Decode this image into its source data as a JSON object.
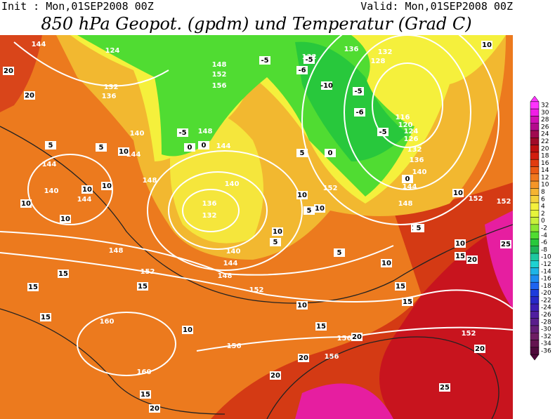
{
  "header": {
    "init": "Init : Mon,01SEP2008 00Z",
    "valid": "Valid: Mon,01SEP2008 00Z",
    "title": "850 hPa Geopot. (gpdm) und Temperatur (Grad C)"
  },
  "map": {
    "contour_labels": [
      144,
      124,
      132,
      136,
      148,
      152,
      156,
      140,
      144,
      148,
      148,
      144,
      140,
      136,
      132,
      140,
      144,
      148,
      152,
      152,
      148,
      160,
      160,
      156,
      156,
      156,
      152,
      144,
      148,
      140,
      136,
      132,
      126,
      124,
      120,
      116,
      128,
      132,
      136,
      132,
      152,
      152,
      152,
      140,
      144,
      144,
      -5,
      -6,
      -5,
      -10,
      -5,
      -6,
      -5,
      -5,
      0,
      0,
      5,
      0,
      5,
      10,
      10,
      10,
      5,
      5,
      10,
      10,
      10,
      15,
      20,
      25,
      15,
      15,
      10,
      15,
      10,
      10,
      20,
      20,
      5,
      10,
      10,
      10,
      10,
      10,
      15,
      15,
      15,
      15,
      15,
      20,
      20,
      20,
      20,
      25,
      20,
      5,
      5,
      10,
      0
    ]
  },
  "colorbar": {
    "ticks": [
      32,
      30,
      28,
      26,
      24,
      22,
      20,
      18,
      16,
      14,
      12,
      10,
      8,
      6,
      4,
      2,
      0,
      -2,
      -4,
      -6,
      -8,
      -10,
      -12,
      -14,
      -16,
      -18,
      -20,
      -22,
      -24,
      -26,
      -28,
      -30,
      -32,
      -34,
      -36
    ],
    "colors": [
      "#ff33ff",
      "#f01ee6",
      "#d20fb4",
      "#b40a8c",
      "#a00a50",
      "#a00a28",
      "#be0f0f",
      "#d21e0f",
      "#e13c0f",
      "#eb5a14",
      "#f0781e",
      "#f59628",
      "#f5b432",
      "#f5d23c",
      "#f5f03c",
      "#e6f53c",
      "#c8f03c",
      "#8ce632",
      "#50dc32",
      "#28c83c",
      "#1eb45a",
      "#1ec8a0",
      "#1ed2d2",
      "#1eb4e6",
      "#1e8cf0",
      "#1e64f0",
      "#1e3cdc",
      "#2828c8",
      "#3c1eb4",
      "#501ea0",
      "#5a1e8c",
      "#641e78",
      "#6e1e64",
      "#641450",
      "#500a3c"
    ]
  }
}
